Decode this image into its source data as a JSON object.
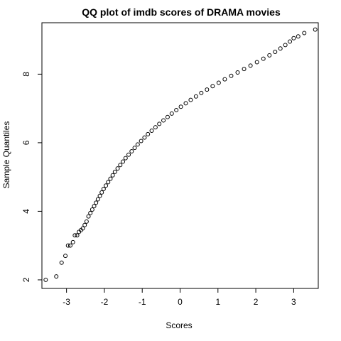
{
  "chart_data": {
    "type": "scatter",
    "title": "QQ plot of imdb scores of DRAMA movies",
    "xlabel": "Scores",
    "ylabel": "Sample Quantiles",
    "xlim": [
      -3.65,
      3.65
    ],
    "ylim": [
      1.75,
      9.5
    ],
    "x_ticks": [
      -3,
      -2,
      -1,
      0,
      1,
      2,
      3
    ],
    "x_tick_labels": [
      "-3",
      "-2",
      "-1",
      "0",
      "1",
      "2",
      "3"
    ],
    "y_ticks": [
      2,
      4,
      6,
      8
    ],
    "y_tick_labels": [
      "2",
      "4",
      "6",
      "8"
    ],
    "grid": false,
    "legend": "none",
    "marker": "open-circle",
    "point_color": "#000000",
    "series": [
      {
        "points": [
          [
            -3.55,
            2.0
          ],
          [
            -3.27,
            2.1
          ],
          [
            -3.13,
            2.5
          ],
          [
            -3.03,
            2.7
          ],
          [
            -2.96,
            3.0
          ],
          [
            -2.9,
            3.0
          ],
          [
            -2.83,
            3.1
          ],
          [
            -2.78,
            3.3
          ],
          [
            -2.72,
            3.3
          ],
          [
            -2.67,
            3.4
          ],
          [
            -2.62,
            3.45
          ],
          [
            -2.57,
            3.5
          ],
          [
            -2.52,
            3.6
          ],
          [
            -2.47,
            3.7
          ],
          [
            -2.42,
            3.85
          ],
          [
            -2.37,
            3.95
          ],
          [
            -2.32,
            4.05
          ],
          [
            -2.27,
            4.15
          ],
          [
            -2.22,
            4.25
          ],
          [
            -2.17,
            4.35
          ],
          [
            -2.12,
            4.45
          ],
          [
            -2.07,
            4.55
          ],
          [
            -2.02,
            4.65
          ],
          [
            -1.96,
            4.75
          ],
          [
            -1.9,
            4.85
          ],
          [
            -1.84,
            4.95
          ],
          [
            -1.78,
            5.05
          ],
          [
            -1.72,
            5.15
          ],
          [
            -1.65,
            5.25
          ],
          [
            -1.58,
            5.35
          ],
          [
            -1.51,
            5.45
          ],
          [
            -1.44,
            5.55
          ],
          [
            -1.36,
            5.65
          ],
          [
            -1.28,
            5.75
          ],
          [
            -1.2,
            5.85
          ],
          [
            -1.12,
            5.95
          ],
          [
            -1.03,
            6.05
          ],
          [
            -0.94,
            6.15
          ],
          [
            -0.85,
            6.25
          ],
          [
            -0.75,
            6.35
          ],
          [
            -0.65,
            6.45
          ],
          [
            -0.55,
            6.55
          ],
          [
            -0.44,
            6.65
          ],
          [
            -0.33,
            6.75
          ],
          [
            -0.22,
            6.85
          ],
          [
            -0.1,
            6.95
          ],
          [
            0.02,
            7.05
          ],
          [
            0.15,
            7.15
          ],
          [
            0.28,
            7.25
          ],
          [
            0.42,
            7.35
          ],
          [
            0.56,
            7.45
          ],
          [
            0.71,
            7.55
          ],
          [
            0.86,
            7.65
          ],
          [
            1.02,
            7.75
          ],
          [
            1.18,
            7.85
          ],
          [
            1.35,
            7.95
          ],
          [
            1.52,
            8.05
          ],
          [
            1.69,
            8.15
          ],
          [
            1.86,
            8.25
          ],
          [
            2.03,
            8.35
          ],
          [
            2.2,
            8.45
          ],
          [
            2.36,
            8.55
          ],
          [
            2.51,
            8.65
          ],
          [
            2.65,
            8.75
          ],
          [
            2.78,
            8.85
          ],
          [
            2.9,
            8.95
          ],
          [
            3.0,
            9.05
          ],
          [
            3.12,
            9.1
          ],
          [
            3.28,
            9.2
          ],
          [
            3.57,
            9.3
          ]
        ]
      }
    ]
  }
}
